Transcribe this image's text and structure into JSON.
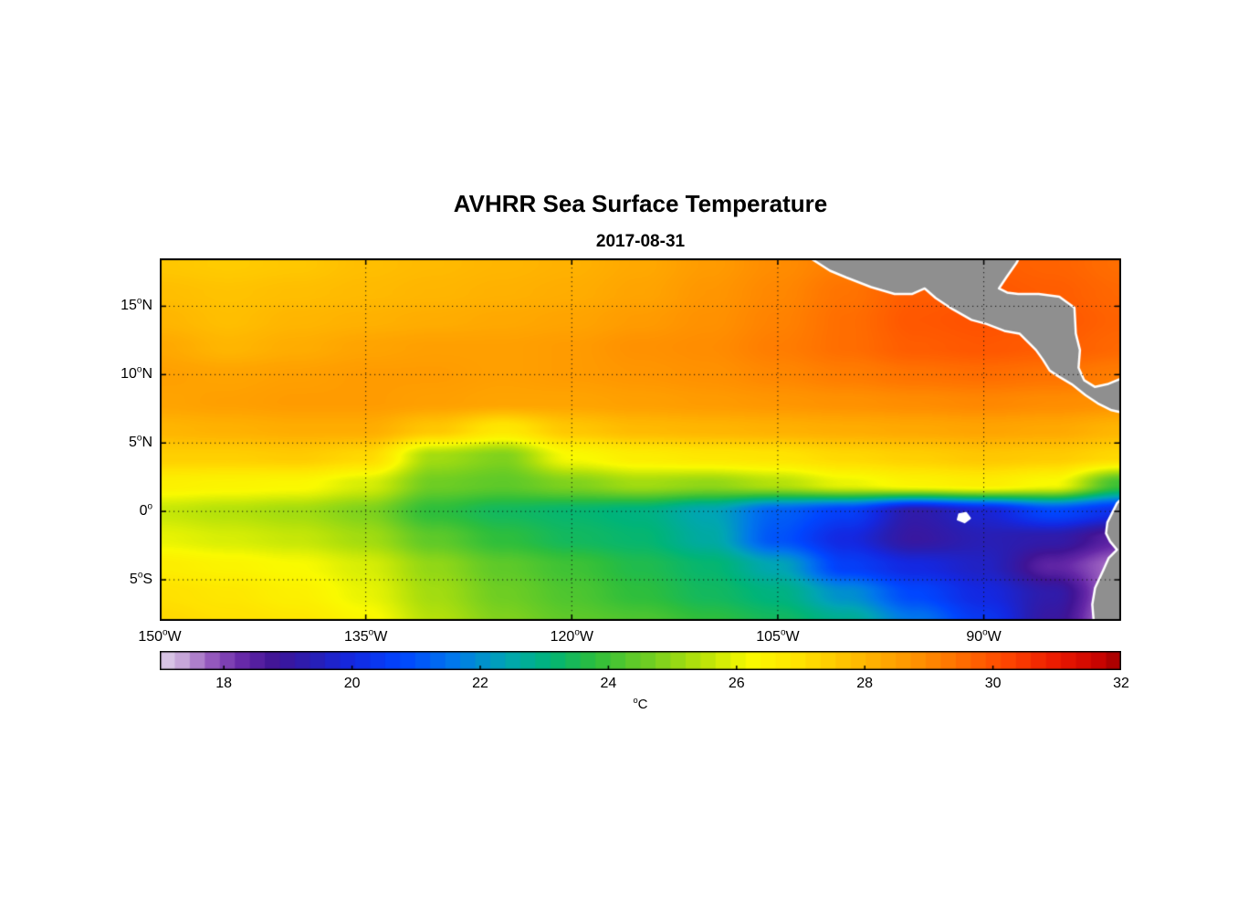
{
  "title": "AVHRR Sea Surface Temperature",
  "subtitle": "2017-08-31",
  "chart_data": {
    "type": "heatmap",
    "title": "AVHRR Sea Surface Temperature",
    "subtitle": "2017-08-31",
    "x_axis": {
      "range_lon": [
        -150,
        -80
      ],
      "tick_values": [
        -150,
        -135,
        -120,
        -105,
        -90
      ],
      "tick_labels": [
        "150°W",
        "135°W",
        "120°W",
        "105°W",
        "90°W"
      ]
    },
    "y_axis": {
      "range_lat": [
        -8,
        18.5
      ],
      "tick_values": [
        15,
        10,
        5,
        0,
        -5
      ],
      "tick_labels": [
        "15°N",
        "10°N",
        "5°N",
        "0°",
        "5°S"
      ]
    },
    "grid_on": true,
    "grid_lons": [
      -150,
      -145,
      -140,
      -135,
      -130,
      -125,
      -120,
      -115,
      -110,
      -105,
      -100,
      -95,
      -90,
      -85,
      -80
    ],
    "grid_lats": [
      18,
      16,
      14,
      12,
      10,
      8,
      6,
      4,
      2,
      0,
      -2,
      -4,
      -6,
      -8
    ],
    "sst_c": [
      [
        27.6,
        27.5,
        27.6,
        27.8,
        27.9,
        28.0,
        28.1,
        28.3,
        28.6,
        28.9,
        29.2,
        29.6,
        29.8,
        29.7,
        29.5
      ],
      [
        27.8,
        27.7,
        27.8,
        27.9,
        28.0,
        28.1,
        28.2,
        28.4,
        28.7,
        29.0,
        29.4,
        29.8,
        29.9,
        29.8,
        29.6
      ],
      [
        28.0,
        27.8,
        28.0,
        28.1,
        28.2,
        28.3,
        28.4,
        28.6,
        28.8,
        29.1,
        29.5,
        29.9,
        30.0,
        29.9,
        29.7
      ],
      [
        28.3,
        28.0,
        28.2,
        28.4,
        28.5,
        28.5,
        28.6,
        28.8,
        28.9,
        29.2,
        29.5,
        29.8,
        29.9,
        29.8,
        29.6
      ],
      [
        28.5,
        28.4,
        28.5,
        28.6,
        28.6,
        28.5,
        28.6,
        28.7,
        28.8,
        29.0,
        29.2,
        29.4,
        29.5,
        29.4,
        29.2
      ],
      [
        28.4,
        28.5,
        28.6,
        28.6,
        28.5,
        28.4,
        28.4,
        28.5,
        28.6,
        28.7,
        28.8,
        28.9,
        29.0,
        28.9,
        28.8
      ],
      [
        28.0,
        28.1,
        28.2,
        28.2,
        27.6,
        26.8,
        27.6,
        27.9,
        28.0,
        28.1,
        28.2,
        28.3,
        28.4,
        28.3,
        28.0
      ],
      [
        27.4,
        27.4,
        27.5,
        27.2,
        25.2,
        24.8,
        26.2,
        26.6,
        26.8,
        26.9,
        27.2,
        27.4,
        27.6,
        27.5,
        27.2
      ],
      [
        26.5,
        26.4,
        26.3,
        25.8,
        24.6,
        24.4,
        24.8,
        25.2,
        25.0,
        25.4,
        26.0,
        26.4,
        26.6,
        26.2,
        24.0
      ],
      [
        25.6,
        25.4,
        25.2,
        24.8,
        23.8,
        23.4,
        23.2,
        23.0,
        22.4,
        21.2,
        20.6,
        19.2,
        19.8,
        20.8,
        20.2
      ],
      [
        26.0,
        25.8,
        25.6,
        25.2,
        24.4,
        23.8,
        23.4,
        23.2,
        22.6,
        21.0,
        20.0,
        19.0,
        19.4,
        19.2,
        18.4
      ],
      [
        26.6,
        26.4,
        26.2,
        25.8,
        25.0,
        24.4,
        24.0,
        23.6,
        23.2,
        22.4,
        20.6,
        20.0,
        19.6,
        18.4,
        17.6
      ],
      [
        27.0,
        26.8,
        26.5,
        26.0,
        25.2,
        24.6,
        24.2,
        23.8,
        23.4,
        23.0,
        22.0,
        20.8,
        20.0,
        19.2,
        17.4
      ],
      [
        27.2,
        27.0,
        26.8,
        26.3,
        25.4,
        24.8,
        24.4,
        24.2,
        23.8,
        23.4,
        22.8,
        21.6,
        20.4,
        19.0,
        17.2
      ]
    ],
    "colormap_stops": [
      [
        17.0,
        225,
        210,
        235
      ],
      [
        17.4,
        196,
        160,
        214
      ],
      [
        17.8,
        150,
        90,
        190
      ],
      [
        18.3,
        102,
        40,
        168
      ],
      [
        18.8,
        64,
        20,
        150
      ],
      [
        19.4,
        40,
        30,
        180
      ],
      [
        20.0,
        20,
        40,
        225
      ],
      [
        20.8,
        0,
        70,
        255
      ],
      [
        21.6,
        0,
        120,
        235
      ],
      [
        22.4,
        0,
        165,
        180
      ],
      [
        23.1,
        0,
        180,
        120
      ],
      [
        23.8,
        45,
        190,
        60
      ],
      [
        24.6,
        110,
        205,
        35
      ],
      [
        25.4,
        180,
        225,
        10
      ],
      [
        26.2,
        250,
        250,
        0
      ],
      [
        27.0,
        255,
        225,
        0
      ],
      [
        27.8,
        255,
        190,
        0
      ],
      [
        28.6,
        255,
        155,
        0
      ],
      [
        29.4,
        255,
        115,
        0
      ],
      [
        30.2,
        255,
        70,
        0
      ],
      [
        31.0,
        235,
        25,
        0
      ],
      [
        31.6,
        205,
        5,
        0
      ],
      [
        32.0,
        160,
        0,
        0
      ]
    ],
    "colorbar": {
      "range": [
        17,
        32
      ],
      "ticks": [
        18,
        20,
        22,
        24,
        26,
        28,
        30,
        32
      ],
      "label": "°C",
      "steps": 64
    },
    "land_color": "#8f8f8f",
    "coast_color": "#ffffff",
    "land_polygons": {
      "central_america": [
        [
          -102.6,
          18.5
        ],
        [
          -101.2,
          17.6
        ],
        [
          -100.0,
          17.1
        ],
        [
          -98.2,
          16.4
        ],
        [
          -96.5,
          15.9
        ],
        [
          -95.2,
          15.9
        ],
        [
          -94.3,
          16.3
        ],
        [
          -93.5,
          15.6
        ],
        [
          -92.3,
          14.8
        ],
        [
          -90.9,
          14.0
        ],
        [
          -89.8,
          13.7
        ],
        [
          -88.5,
          13.2
        ],
        [
          -87.4,
          13.0
        ],
        [
          -86.8,
          12.4
        ],
        [
          -86.2,
          11.8
        ],
        [
          -85.7,
          11.1
        ],
        [
          -85.2,
          10.3
        ],
        [
          -84.6,
          9.9
        ],
        [
          -83.6,
          9.3
        ],
        [
          -82.6,
          8.5
        ],
        [
          -81.7,
          7.9
        ],
        [
          -80.7,
          7.4
        ],
        [
          -79.8,
          7.2
        ],
        [
          -79.8,
          9.8
        ],
        [
          -81.0,
          9.3
        ],
        [
          -81.9,
          9.1
        ],
        [
          -82.7,
          9.6
        ],
        [
          -83.1,
          10.5
        ],
        [
          -83.0,
          11.8
        ],
        [
          -83.3,
          13.0
        ],
        [
          -83.4,
          14.9
        ],
        [
          -84.5,
          15.7
        ],
        [
          -86.0,
          15.9
        ],
        [
          -87.5,
          15.9
        ],
        [
          -88.3,
          16.0
        ],
        [
          -88.9,
          16.3
        ],
        [
          -88.3,
          17.2
        ],
        [
          -87.6,
          18.2
        ],
        [
          -87.4,
          18.6
        ]
      ],
      "south_america": [
        [
          -79.8,
          1.1
        ],
        [
          -80.3,
          0.6
        ],
        [
          -80.6,
          0.0
        ],
        [
          -81.0,
          -0.8
        ],
        [
          -81.1,
          -1.6
        ],
        [
          -80.8,
          -2.2
        ],
        [
          -80.3,
          -2.8
        ],
        [
          -80.9,
          -3.4
        ],
        [
          -81.3,
          -4.3
        ],
        [
          -81.9,
          -5.6
        ],
        [
          -82.1,
          -6.8
        ],
        [
          -82.0,
          -8.0
        ],
        [
          -81.9,
          -8.6
        ],
        [
          -79.8,
          -8.6
        ]
      ],
      "galapagos_island_white": [
        [
          -91.8,
          -0.2
        ],
        [
          -91.3,
          -0.1
        ],
        [
          -91.0,
          -0.5
        ],
        [
          -91.4,
          -0.8
        ],
        [
          -91.9,
          -0.6
        ]
      ]
    }
  }
}
